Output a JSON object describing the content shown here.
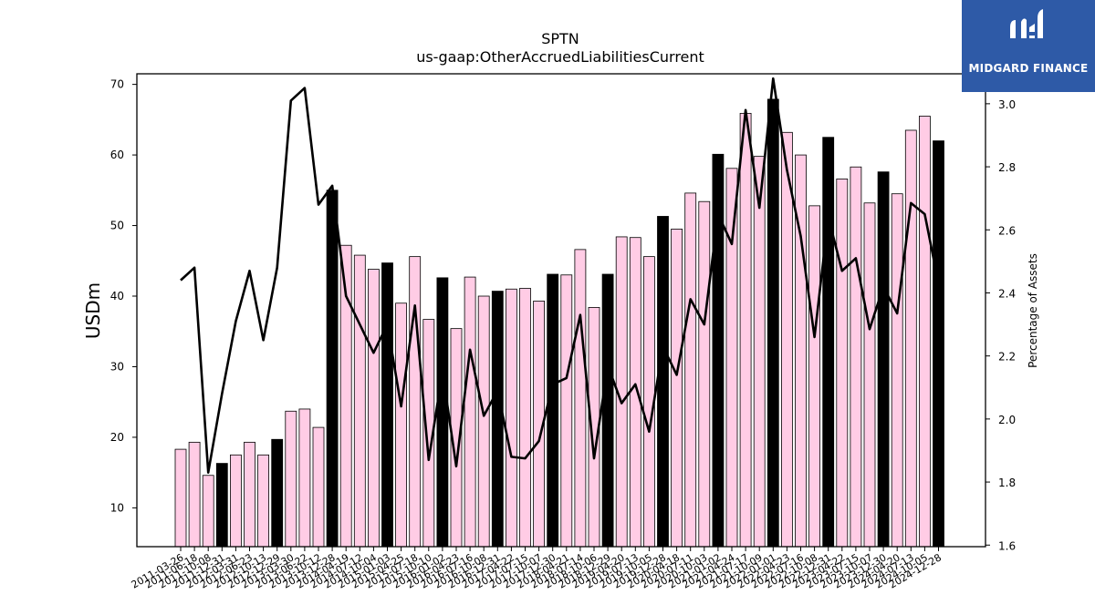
{
  "brand": {
    "name": "MIDGARD FINANCE",
    "color": "#2e5aa7"
  },
  "chart_data": {
    "type": "bar",
    "title": "SPTN",
    "subtitle": "us-gaap:OtherAccruedLiabilitiesCurrent",
    "ylabel": "USDm",
    "y2label": "Percentage of Assets",
    "ylim": [
      4.5,
      71.5
    ],
    "y2lim": [
      1.595,
      3.095
    ],
    "yticks": [
      10,
      20,
      30,
      40,
      50,
      60,
      70
    ],
    "y2ticks": [
      1.6,
      1.8,
      2.0,
      2.2,
      2.4,
      2.6,
      2.8,
      3.0
    ],
    "y2tick_labels": [
      "1.6",
      "1.8",
      "2.0",
      "2.2",
      "2.4",
      "2.6",
      "2.8",
      "3.0"
    ],
    "grid": false,
    "colors": {
      "bar_default": "#ffcce5",
      "bar_highlight": "#000000",
      "line": "#000000"
    },
    "categories": [
      "2011-03-26",
      "2011-06-18",
      "2011-10-08",
      "2011-12-31",
      "2012-03-31",
      "2012-06-23",
      "2012-10-13",
      "2012-12-29",
      "2013-03-30",
      "2013-06-22",
      "2013-10-12",
      "2013-12-28",
      "2014-04-19",
      "2014-07-12",
      "2014-10-04",
      "2015-01-03",
      "2015-04-25",
      "2015-07-18",
      "2015-10-10",
      "2016-01-02",
      "2016-04-23",
      "2016-07-16",
      "2016-10-08",
      "2016-12-31",
      "2017-04-22",
      "2017-07-15",
      "2017-10-07",
      "2017-12-30",
      "2018-04-21",
      "2018-07-14",
      "2018-10-06",
      "2018-12-29",
      "2019-04-20",
      "2019-07-13",
      "2019-10-05",
      "2019-12-28",
      "2020-04-18",
      "2020-07-11",
      "2020-10-03",
      "2021-01-02",
      "2021-04-24",
      "2021-07-17",
      "2021-10-09",
      "2022-01-01",
      "2022-04-23",
      "2022-07-16",
      "2022-10-08",
      "2022-12-31",
      "2023-04-22",
      "2023-07-15",
      "2023-10-07",
      "2023-12-30",
      "2024-04-20",
      "2024-07-13",
      "2024-10-05",
      "2024-12-28"
    ],
    "xtick_labels": [
      "2011-03-26",
      "2011-06-18",
      "2011-10-08",
      "2011-12-31",
      "2012-03-31",
      "2012-06-23",
      "2012-10-13",
      "2012-12-29",
      "2013-03-30",
      "2013-06-22",
      "2013-10-12",
      "2013-12-28",
      "2014-04-19",
      "2014-07-12",
      "2014-10-04",
      "2015-01-03",
      "2015-04-25",
      "2015-07-18",
      "2015-10-10",
      "2016-01-02",
      "2016-04-23",
      "2016-07-16",
      "2016-10-08",
      "2016-12-31",
      "2017-04-22",
      "2017-07-15",
      "2017-10-07",
      "2017-12-30",
      "2018-04-21",
      "2018-07-14",
      "2018-10-06",
      "2018-12-29",
      "2019-04-20",
      "2019-07-13",
      "2019-10-05",
      "2019-12-28",
      "2020-04-18",
      "2020-07-11",
      "2020-10-03",
      "2021-01-02",
      "2021-04-24",
      "2021-07-17",
      "2021-10-09",
      "2022-01-01",
      "2022-04-23",
      "2022-07-16",
      "2022-10-08",
      "2022-12-31",
      "2023-04-22",
      "2023-07-15",
      "2023-10-07",
      "2023-12-30",
      "2024-04-20",
      "2024-07-13",
      "2024-10-05",
      "2024-12-28"
    ],
    "series": [
      {
        "axis": "left",
        "type": "bar",
        "values": [
          18.3,
          19.3,
          14.6,
          16.3,
          17.5,
          19.3,
          17.5,
          19.7,
          23.7,
          24.0,
          21.4,
          55.0,
          47.2,
          45.8,
          43.8,
          44.7,
          39.0,
          45.6,
          36.7,
          42.6,
          35.4,
          42.7,
          40.0,
          40.7,
          41.0,
          41.1,
          39.3,
          43.1,
          43.0,
          46.6,
          38.4,
          43.1,
          48.4,
          48.3,
          45.6,
          51.3,
          49.5,
          54.6,
          53.4,
          60.1,
          58.1,
          65.9,
          59.8,
          67.9,
          63.2,
          60.0,
          52.8,
          62.5,
          56.6,
          58.3,
          53.2,
          57.6,
          54.5,
          63.5,
          65.5,
          62.0
        ],
        "highlight": [
          false,
          false,
          false,
          true,
          false,
          false,
          false,
          true,
          false,
          false,
          false,
          true,
          false,
          false,
          false,
          true,
          false,
          false,
          false,
          true,
          false,
          false,
          false,
          true,
          false,
          false,
          false,
          true,
          false,
          false,
          false,
          true,
          false,
          false,
          false,
          true,
          false,
          false,
          false,
          true,
          false,
          false,
          false,
          true,
          false,
          false,
          false,
          true,
          false,
          false,
          false,
          true,
          false,
          false,
          false,
          true
        ]
      },
      {
        "axis": "right",
        "type": "line",
        "values": [
          2.44,
          2.48,
          1.83,
          2.08,
          2.31,
          2.47,
          2.25,
          2.48,
          3.01,
          3.05,
          2.68,
          2.74,
          2.39,
          2.3,
          2.21,
          2.3,
          2.04,
          2.36,
          1.87,
          2.15,
          1.85,
          2.22,
          2.01,
          2.09,
          1.88,
          1.875,
          1.93,
          2.11,
          2.13,
          2.33,
          1.875,
          2.17,
          2.05,
          2.11,
          1.96,
          2.23,
          2.14,
          2.38,
          2.3,
          2.65,
          2.555,
          2.98,
          2.67,
          3.08,
          2.79,
          2.58,
          2.26,
          2.64,
          2.47,
          2.51,
          2.285,
          2.42,
          2.335,
          2.685,
          2.65,
          2.43
        ]
      }
    ]
  }
}
